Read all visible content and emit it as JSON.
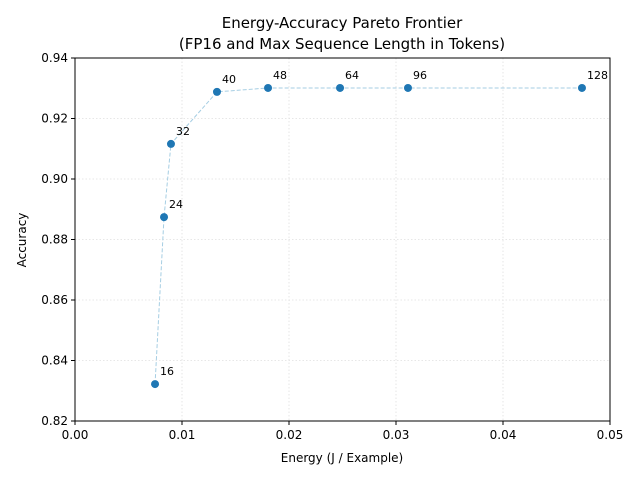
{
  "chart_data": {
    "type": "scatter",
    "title": "Energy-Accuracy Pareto Frontier",
    "subtitle": "(FP16 and Max Sequence Length in Tokens)",
    "x_label": "Energy (J / Example)",
    "y_label": "Accuracy",
    "series": [
      {
        "color": "#1f77b4",
        "line_color": "#a6cee3",
        "x": [
          0.00748,
          0.00832,
          0.00897,
          0.01327,
          0.01804,
          0.02477,
          0.03112,
          0.04738
        ],
        "values": [
          0.8322,
          0.8874,
          0.9116,
          0.9288,
          0.9301,
          0.9301,
          0.9301,
          0.9301
        ],
        "labels": [
          16,
          24,
          32,
          40,
          48,
          64,
          96,
          128
        ]
      }
    ],
    "xlim": [
      0,
      0.05
    ],
    "xticks": [
      {
        "value": 0,
        "label": "0.00"
      },
      {
        "value": 0.01,
        "label": "0.01"
      },
      {
        "value": 0.02,
        "label": "0.02"
      },
      {
        "value": 0.03,
        "label": "0.03"
      },
      {
        "value": 0.04,
        "label": "0.04"
      },
      {
        "value": 0.05,
        "label": "0.05"
      }
    ],
    "ylim": [
      0.82,
      0.94
    ],
    "yticks": [
      0.82,
      0.84,
      0.86,
      0.88,
      {
        "value": 0.9,
        "label": "0.90"
      },
      0.92,
      0.94
    ],
    "grid": true
  }
}
